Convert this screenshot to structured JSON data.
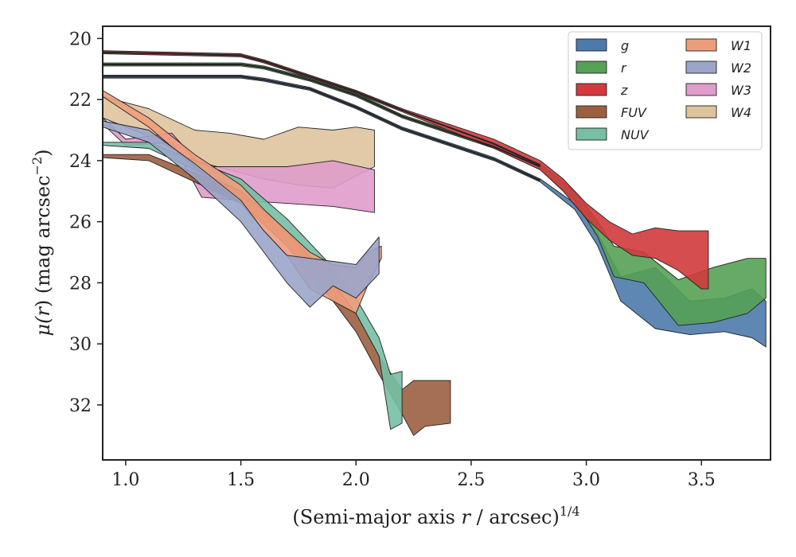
{
  "chart_data": {
    "type": "area",
    "xlabel_main": "(Semi-major axis ",
    "xlabel_var": "r",
    "xlabel_tail": " / arcsec)",
    "xlabel_exp": "1/4",
    "ylabel_main": "μ(",
    "ylabel_var": "r",
    "ylabel_tail": ") (mag arcsec",
    "ylabel_exp": "−2",
    "ylabel_close": ")",
    "xlim": [
      0.9,
      3.8
    ],
    "ylim": [
      33.8,
      19.6
    ],
    "y_inverted": true,
    "grid": false,
    "legend_position": "top-right",
    "xticks": [
      1.0,
      1.5,
      2.0,
      2.5,
      3.0,
      3.5
    ],
    "xtick_labels": [
      "1.0",
      "1.5",
      "2.0",
      "2.5",
      "3.0",
      "3.5"
    ],
    "yticks": [
      20,
      22,
      24,
      26,
      28,
      30,
      32
    ],
    "ytick_labels": [
      "20",
      "22",
      "24",
      "26",
      "28",
      "30",
      "32"
    ],
    "series": [
      {
        "name": "g",
        "color": "#4c7bab",
        "band": [
          [
            0.9,
            21.2,
            21.3
          ],
          [
            1.5,
            21.2,
            21.3
          ],
          [
            1.6,
            21.3,
            21.4
          ],
          [
            1.8,
            21.6,
            21.7
          ],
          [
            2.0,
            22.2,
            22.3
          ],
          [
            2.2,
            22.9,
            23.0
          ],
          [
            2.4,
            23.4,
            23.5
          ],
          [
            2.6,
            23.9,
            24.0
          ],
          [
            2.8,
            24.6,
            24.7
          ],
          [
            2.95,
            25.4,
            25.6
          ],
          [
            3.05,
            26.4,
            26.8
          ],
          [
            3.15,
            27.8,
            28.6
          ],
          [
            3.3,
            27.5,
            29.5
          ],
          [
            3.45,
            28.6,
            29.7
          ],
          [
            3.6,
            28.5,
            29.6
          ],
          [
            3.72,
            28.2,
            29.8
          ],
          [
            3.78,
            28.6,
            30.1
          ]
        ]
      },
      {
        "name": "r",
        "color": "#55a155",
        "band": [
          [
            0.9,
            20.8,
            20.9
          ],
          [
            1.5,
            20.8,
            20.9
          ],
          [
            1.6,
            20.9,
            21.0
          ],
          [
            1.8,
            21.3,
            21.4
          ],
          [
            2.0,
            21.8,
            21.9
          ],
          [
            2.2,
            22.5,
            22.6
          ],
          [
            2.4,
            23.0,
            23.1
          ],
          [
            2.6,
            23.5,
            23.6
          ],
          [
            2.8,
            24.1,
            24.3
          ],
          [
            2.95,
            25.0,
            25.3
          ],
          [
            3.05,
            26.0,
            26.5
          ],
          [
            3.12,
            26.8,
            27.8
          ],
          [
            3.25,
            27.0,
            28.0
          ],
          [
            3.4,
            27.9,
            29.4
          ],
          [
            3.55,
            27.5,
            29.3
          ],
          [
            3.7,
            27.2,
            29.0
          ],
          [
            3.78,
            27.2,
            28.5
          ]
        ]
      },
      {
        "name": "z",
        "color": "#d23a3c",
        "band": [
          [
            0.9,
            20.4,
            20.5
          ],
          [
            1.5,
            20.5,
            20.6
          ],
          [
            1.6,
            20.7,
            20.8
          ],
          [
            1.8,
            21.2,
            21.3
          ],
          [
            2.0,
            21.7,
            21.8
          ],
          [
            2.2,
            22.3,
            22.4
          ],
          [
            2.4,
            22.8,
            23.0
          ],
          [
            2.6,
            23.3,
            23.6
          ],
          [
            2.8,
            24.0,
            24.3
          ],
          [
            2.9,
            24.6,
            25.0
          ],
          [
            3.0,
            25.4,
            25.9
          ],
          [
            3.1,
            26.0,
            26.6
          ],
          [
            3.2,
            26.4,
            27.1
          ],
          [
            3.3,
            26.2,
            27.2
          ],
          [
            3.4,
            26.3,
            27.6
          ],
          [
            3.5,
            26.3,
            28.2
          ],
          [
            3.53,
            26.3,
            28.2
          ]
        ]
      },
      {
        "name": "FUV",
        "color": "#9b5f40",
        "band": [
          [
            0.9,
            23.8,
            23.9
          ],
          [
            1.1,
            23.8,
            24.0
          ],
          [
            1.3,
            24.4,
            24.7
          ],
          [
            1.5,
            25.0,
            25.4
          ],
          [
            1.7,
            26.3,
            26.8
          ],
          [
            1.9,
            28.0,
            28.6
          ],
          [
            2.0,
            29.0,
            29.6
          ],
          [
            2.1,
            30.4,
            31.0
          ],
          [
            2.2,
            31.5,
            32.3
          ],
          [
            2.25,
            31.2,
            33.0
          ],
          [
            2.3,
            31.2,
            32.7
          ],
          [
            2.41,
            31.2,
            32.6
          ]
        ]
      },
      {
        "name": "NUV",
        "color": "#77bfa4",
        "band": [
          [
            0.9,
            23.4,
            23.5
          ],
          [
            1.1,
            23.4,
            23.6
          ],
          [
            1.3,
            24.0,
            24.3
          ],
          [
            1.5,
            24.6,
            25.0
          ],
          [
            1.7,
            25.9,
            26.3
          ],
          [
            1.9,
            27.5,
            28.0
          ],
          [
            2.0,
            28.5,
            29.0
          ],
          [
            2.1,
            29.8,
            30.4
          ],
          [
            2.15,
            31.0,
            32.8
          ],
          [
            2.2,
            30.9,
            32.6
          ]
        ]
      },
      {
        "name": "W1",
        "color": "#ee9d7c",
        "band": [
          [
            0.9,
            21.7,
            21.9
          ],
          [
            1.1,
            22.6,
            22.9
          ],
          [
            1.3,
            23.8,
            24.2
          ],
          [
            1.5,
            24.8,
            25.4
          ],
          [
            1.6,
            25.6,
            26.3
          ],
          [
            1.7,
            26.3,
            27.1
          ],
          [
            1.8,
            27.0,
            28.2
          ],
          [
            1.9,
            27.4,
            28.6
          ],
          [
            2.0,
            27.5,
            29.0
          ],
          [
            2.05,
            27.0,
            28.1
          ],
          [
            2.11,
            26.8,
            27.2
          ]
        ]
      },
      {
        "name": "W2",
        "color": "#9aa5c9",
        "band": [
          [
            0.9,
            22.7,
            22.9
          ],
          [
            1.1,
            23.0,
            23.4
          ],
          [
            1.3,
            24.1,
            24.6
          ],
          [
            1.5,
            25.3,
            26.0
          ],
          [
            1.6,
            26.3,
            27.0
          ],
          [
            1.7,
            27.1,
            28.0
          ],
          [
            1.8,
            27.2,
            28.8
          ],
          [
            1.9,
            27.3,
            28.1
          ],
          [
            2.0,
            27.4,
            28.5
          ],
          [
            2.1,
            26.5,
            27.7
          ]
        ]
      },
      {
        "name": "W3",
        "color": "#e09ccb",
        "band": [
          [
            0.9,
            22.6,
            22.8
          ],
          [
            1.0,
            23.3,
            23.5
          ],
          [
            1.2,
            23.1,
            23.4
          ],
          [
            1.33,
            24.2,
            25.2
          ],
          [
            1.5,
            24.2,
            25.3
          ],
          [
            1.7,
            24.2,
            25.4
          ],
          [
            1.9,
            24.0,
            25.5
          ],
          [
            2.08,
            24.3,
            25.7
          ]
        ]
      },
      {
        "name": "W4",
        "color": "#dfc39d",
        "band": [
          [
            0.9,
            21.9,
            22.6
          ],
          [
            1.1,
            22.3,
            23.2
          ],
          [
            1.3,
            23.0,
            24.0
          ],
          [
            1.45,
            23.1,
            24.3
          ],
          [
            1.6,
            23.3,
            24.6
          ],
          [
            1.75,
            22.9,
            24.8
          ],
          [
            1.9,
            23.0,
            24.9
          ],
          [
            2.0,
            22.9,
            24.5
          ],
          [
            2.08,
            23.0,
            24.2
          ]
        ]
      }
    ],
    "envelope_lines": [
      {
        "series": "g",
        "points": [
          [
            0.9,
            21.25
          ],
          [
            1.5,
            21.25
          ],
          [
            1.6,
            21.35
          ],
          [
            1.8,
            21.65
          ],
          [
            2.0,
            22.25
          ],
          [
            2.2,
            22.95
          ],
          [
            2.4,
            23.45
          ],
          [
            2.6,
            23.95
          ],
          [
            2.8,
            24.65
          ]
        ]
      },
      {
        "series": "r",
        "points": [
          [
            0.9,
            20.85
          ],
          [
            1.5,
            20.85
          ],
          [
            1.6,
            20.95
          ],
          [
            1.8,
            21.35
          ],
          [
            2.0,
            21.85
          ],
          [
            2.2,
            22.55
          ],
          [
            2.4,
            23.05
          ],
          [
            2.6,
            23.55
          ],
          [
            2.8,
            24.2
          ]
        ]
      },
      {
        "series": "z",
        "points": [
          [
            0.9,
            20.45
          ],
          [
            1.5,
            20.55
          ],
          [
            1.6,
            20.75
          ],
          [
            1.8,
            21.25
          ],
          [
            2.0,
            21.75
          ],
          [
            2.2,
            22.35
          ],
          [
            2.4,
            22.9
          ],
          [
            2.6,
            23.45
          ],
          [
            2.8,
            24.15
          ]
        ]
      }
    ],
    "legend": {
      "columns": [
        [
          "g",
          "r",
          "z",
          "FUV",
          "NUV"
        ],
        [
          "W1",
          "W2",
          "W3",
          "W4"
        ]
      ]
    }
  }
}
